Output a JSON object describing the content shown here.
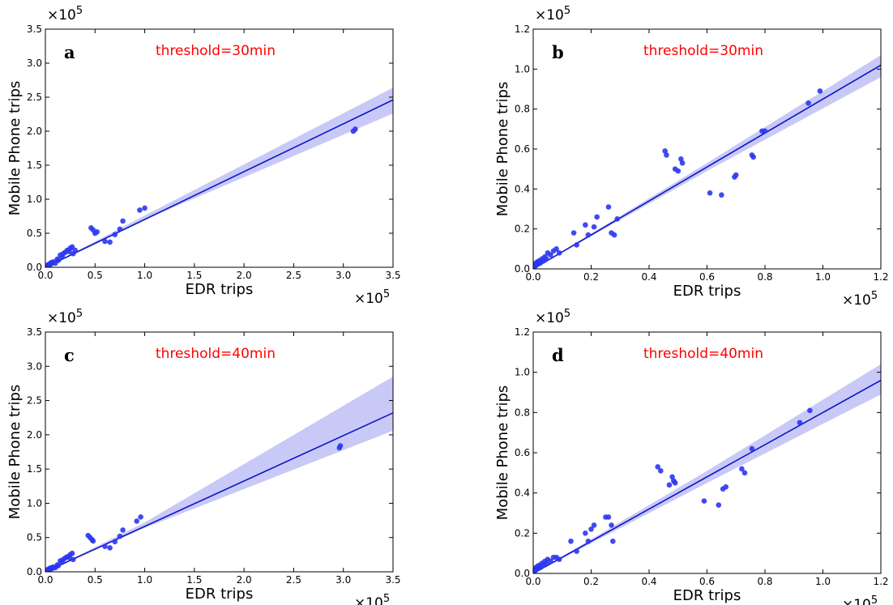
{
  "figure": {
    "panel_letters": [
      "a",
      "b",
      "c",
      "d"
    ],
    "annotations": [
      "threshold=30min",
      "threshold=30min",
      "threshold=40min",
      "threshold=40min"
    ]
  },
  "colors": {
    "points": "#2b36f0",
    "fit_line": "#0a14c8",
    "confidence_band": "#c9c9f7",
    "annotation": "#ff0000",
    "axes": "#000000"
  },
  "chart_data": [
    {
      "type": "scatter",
      "panel": "a",
      "annotation": "threshold=30min",
      "xlabel": "EDR trips",
      "ylabel": "Mobile Phone trips",
      "x_multiplier": "×10^5",
      "y_multiplier": "×10^5",
      "xlim": [
        0.0,
        3.5
      ],
      "ylim": [
        0.0,
        3.5
      ],
      "xticks": [
        "0.0",
        "0.5",
        "1.0",
        "1.5",
        "2.0",
        "2.5",
        "3.0",
        "3.5"
      ],
      "yticks": [
        "0.0",
        "0.5",
        "1.0",
        "1.5",
        "2.0",
        "2.5",
        "3.0",
        "3.5"
      ],
      "fit_line": {
        "x": [
          0.0,
          3.5
        ],
        "y": [
          0.0,
          2.46
        ]
      },
      "confidence_band": {
        "x": [
          0.0,
          0.5,
          1.0,
          3.5
        ],
        "lower": [
          0.0,
          0.35,
          0.7,
          2.26
        ],
        "upper": [
          0.0,
          0.38,
          0.76,
          2.64
        ]
      },
      "points": {
        "x": [
          0.01,
          0.02,
          0.03,
          0.04,
          0.05,
          0.06,
          0.07,
          0.08,
          0.1,
          0.12,
          0.13,
          0.15,
          0.17,
          0.18,
          0.2,
          0.22,
          0.24,
          0.25,
          0.27,
          0.28,
          0.3,
          0.46,
          0.48,
          0.5,
          0.52,
          0.6,
          0.65,
          0.7,
          0.75,
          0.78,
          0.95,
          1.0,
          3.1,
          3.12
        ],
        "y": [
          0.01,
          0.03,
          0.02,
          0.05,
          0.04,
          0.07,
          0.06,
          0.08,
          0.06,
          0.12,
          0.1,
          0.18,
          0.15,
          0.2,
          0.22,
          0.25,
          0.23,
          0.28,
          0.3,
          0.2,
          0.25,
          0.58,
          0.55,
          0.5,
          0.52,
          0.38,
          0.37,
          0.48,
          0.56,
          0.68,
          0.84,
          0.87,
          2.0,
          2.03
        ]
      }
    },
    {
      "type": "scatter",
      "panel": "b",
      "annotation": "threshold=30min",
      "xlabel": "EDR trips",
      "ylabel": "Mobile Phone trips",
      "x_multiplier": "×10^5",
      "y_multiplier": "×10^5",
      "xlim": [
        0.0,
        1.2
      ],
      "ylim": [
        0.0,
        1.2
      ],
      "xticks": [
        "0.0",
        "0.2",
        "0.4",
        "0.6",
        "0.8",
        "1.0",
        "1.2"
      ],
      "yticks": [
        "0.0",
        "0.2",
        "0.4",
        "0.6",
        "0.8",
        "1.0",
        "1.2"
      ],
      "fit_line": {
        "x": [
          0.0,
          1.2
        ],
        "y": [
          0.0,
          1.02
        ]
      },
      "confidence_band": {
        "x": [
          0.0,
          0.3,
          0.6,
          1.2
        ],
        "lower": [
          0.0,
          0.245,
          0.49,
          0.96
        ],
        "upper": [
          0.0,
          0.265,
          0.53,
          1.07
        ]
      },
      "points": {
        "x": [
          0.002,
          0.005,
          0.008,
          0.01,
          0.012,
          0.015,
          0.018,
          0.02,
          0.025,
          0.03,
          0.035,
          0.04,
          0.045,
          0.05,
          0.06,
          0.07,
          0.08,
          0.09,
          0.14,
          0.15,
          0.18,
          0.19,
          0.21,
          0.22,
          0.26,
          0.27,
          0.28,
          0.29,
          0.455,
          0.46,
          0.49,
          0.5,
          0.51,
          0.515,
          0.61,
          0.65,
          0.695,
          0.7,
          0.755,
          0.76,
          0.79,
          0.8,
          0.95,
          0.99
        ],
        "y": [
          0.01,
          0.02,
          0.015,
          0.03,
          0.02,
          0.035,
          0.025,
          0.04,
          0.03,
          0.05,
          0.04,
          0.06,
          0.05,
          0.08,
          0.07,
          0.09,
          0.1,
          0.08,
          0.18,
          0.12,
          0.22,
          0.17,
          0.21,
          0.26,
          0.31,
          0.18,
          0.17,
          0.25,
          0.59,
          0.57,
          0.5,
          0.49,
          0.55,
          0.53,
          0.38,
          0.37,
          0.46,
          0.47,
          0.57,
          0.56,
          0.69,
          0.69,
          0.83,
          0.89
        ]
      }
    },
    {
      "type": "scatter",
      "panel": "c",
      "annotation": "threshold=40min",
      "xlabel": "EDR trips",
      "ylabel": "Mobile Phone trips",
      "x_multiplier": "×10^5",
      "y_multiplier": "×10^5",
      "xlim": [
        0.0,
        3.5
      ],
      "ylim": [
        0.0,
        3.5
      ],
      "xticks": [
        "0.0",
        "0.5",
        "1.0",
        "1.5",
        "2.0",
        "2.5",
        "3.0",
        "3.5"
      ],
      "yticks": [
        "0.0",
        "0.5",
        "1.0",
        "1.5",
        "2.0",
        "2.5",
        "3.0",
        "3.5"
      ],
      "fit_line": {
        "x": [
          0.0,
          3.5
        ],
        "y": [
          0.0,
          2.32
        ]
      },
      "confidence_band": {
        "x": [
          0.0,
          0.5,
          1.0,
          3.5
        ],
        "lower": [
          0.0,
          0.32,
          0.64,
          2.06
        ],
        "upper": [
          0.0,
          0.36,
          0.72,
          2.85
        ]
      },
      "points": {
        "x": [
          0.01,
          0.02,
          0.03,
          0.04,
          0.05,
          0.06,
          0.07,
          0.08,
          0.1,
          0.12,
          0.13,
          0.15,
          0.17,
          0.18,
          0.2,
          0.22,
          0.24,
          0.25,
          0.27,
          0.28,
          0.43,
          0.45,
          0.47,
          0.48,
          0.6,
          0.65,
          0.7,
          0.75,
          0.78,
          0.92,
          0.96,
          2.96,
          2.97
        ],
        "y": [
          0.01,
          0.03,
          0.02,
          0.05,
          0.04,
          0.06,
          0.05,
          0.07,
          0.06,
          0.1,
          0.09,
          0.16,
          0.14,
          0.18,
          0.2,
          0.22,
          0.21,
          0.25,
          0.27,
          0.18,
          0.53,
          0.5,
          0.47,
          0.45,
          0.37,
          0.35,
          0.44,
          0.52,
          0.61,
          0.74,
          0.8,
          1.81,
          1.84
        ]
      }
    },
    {
      "type": "scatter",
      "panel": "d",
      "annotation": "threshold=40min",
      "xlabel": "EDR trips",
      "ylabel": "Mobile Phone trips",
      "x_multiplier": "×10^5",
      "y_multiplier": "×10^5",
      "xlim": [
        0.0,
        1.2
      ],
      "ylim": [
        0.0,
        1.2
      ],
      "xticks": [
        "0.0",
        "0.2",
        "0.4",
        "0.6",
        "0.8",
        "1.0",
        "1.2"
      ],
      "yticks": [
        "0.0",
        "0.2",
        "0.4",
        "0.6",
        "0.8",
        "1.0",
        "1.2"
      ],
      "fit_line": {
        "x": [
          0.0,
          1.2
        ],
        "y": [
          0.0,
          0.96
        ]
      },
      "confidence_band": {
        "x": [
          0.0,
          0.3,
          0.6,
          1.2
        ],
        "lower": [
          0.0,
          0.225,
          0.45,
          0.89
        ],
        "upper": [
          0.0,
          0.255,
          0.51,
          1.04
        ]
      },
      "points": {
        "x": [
          0.002,
          0.005,
          0.008,
          0.01,
          0.012,
          0.015,
          0.018,
          0.02,
          0.025,
          0.03,
          0.035,
          0.04,
          0.045,
          0.05,
          0.06,
          0.07,
          0.08,
          0.09,
          0.13,
          0.15,
          0.18,
          0.19,
          0.2,
          0.21,
          0.25,
          0.26,
          0.27,
          0.275,
          0.43,
          0.44,
          0.47,
          0.48,
          0.485,
          0.49,
          0.59,
          0.64,
          0.655,
          0.665,
          0.72,
          0.73,
          0.755,
          0.92,
          0.955
        ],
        "y": [
          0.01,
          0.02,
          0.015,
          0.03,
          0.02,
          0.035,
          0.025,
          0.04,
          0.03,
          0.05,
          0.04,
          0.06,
          0.05,
          0.07,
          0.06,
          0.08,
          0.08,
          0.07,
          0.16,
          0.11,
          0.2,
          0.16,
          0.22,
          0.24,
          0.28,
          0.28,
          0.24,
          0.16,
          0.53,
          0.51,
          0.44,
          0.48,
          0.46,
          0.45,
          0.36,
          0.34,
          0.42,
          0.43,
          0.52,
          0.5,
          0.62,
          0.75,
          0.81
        ]
      }
    }
  ]
}
